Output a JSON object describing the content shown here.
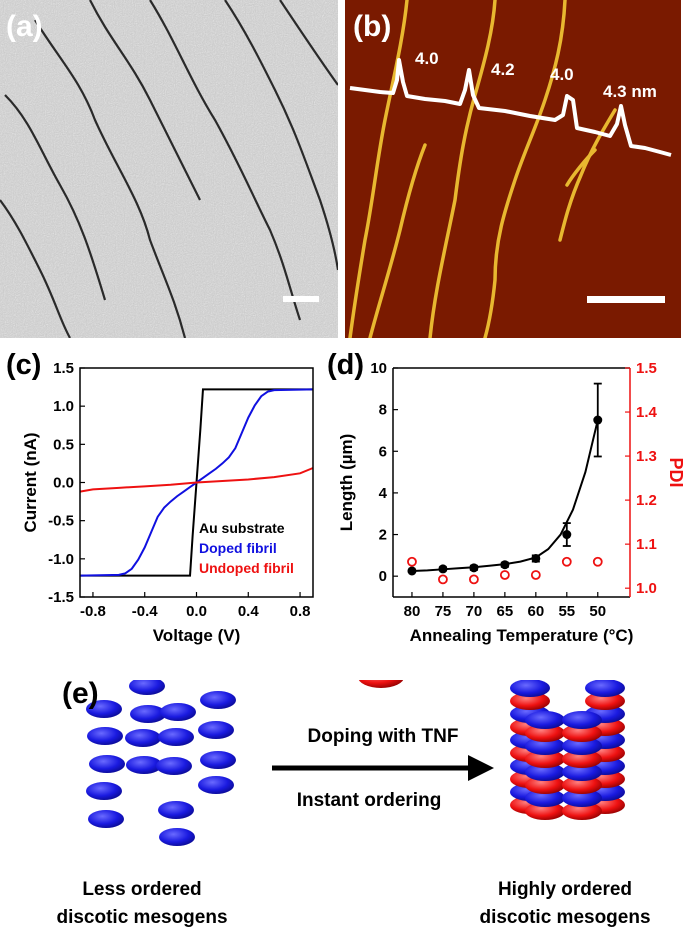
{
  "panels": {
    "a": {
      "label": "(a)"
    },
    "b": {
      "label": "(b)",
      "heights": [
        "4.0",
        "4.2",
        "4.0",
        "4.3 nm"
      ]
    },
    "e": {
      "label": "(e)",
      "arrow_top": "Doping with TNF",
      "arrow_bottom": "Instant ordering",
      "left_caption": [
        "Less ordered",
        "discotic mesogens"
      ],
      "right_caption": [
        "Highly ordered",
        "discotic mesogens"
      ]
    }
  },
  "colors": {
    "black": "#000000",
    "blue": "#1010e0",
    "red": "#ee1111",
    "afm_bg": "#7a1a00",
    "fiber": "#e8b830"
  },
  "chart_data": [
    {
      "panel": "(c)",
      "type": "line",
      "xlabel": "Voltage (V)",
      "ylabel": "Current (nA)",
      "xlim": [
        -0.9,
        0.9
      ],
      "ylim": [
        -1.5,
        1.5
      ],
      "xticks": [
        -0.8,
        -0.4,
        0.0,
        0.4,
        0.8
      ],
      "xtick_labels": [
        "-0.8",
        "-0.4",
        "0.0",
        "0.4",
        "0.8"
      ],
      "yticks": [
        -1.5,
        -1.0,
        -0.5,
        0.0,
        0.5,
        1.0,
        1.5
      ],
      "ytick_labels": [
        "-1.5",
        "-1.0",
        "-0.5",
        "0.0",
        "0.5",
        "1.0",
        "1.5"
      ],
      "legend_position": "bottom-right",
      "series": [
        {
          "name": "Au substrate",
          "color": "#000000",
          "x": [
            -0.9,
            -0.05,
            -0.03,
            0.0,
            0.03,
            0.05,
            0.9
          ],
          "y": [
            -1.22,
            -1.22,
            -0.7,
            0.0,
            0.7,
            1.22,
            1.22
          ]
        },
        {
          "name": "Doped fibril",
          "color": "#1010e0",
          "x": [
            -0.9,
            -0.6,
            -0.55,
            -0.5,
            -0.45,
            -0.4,
            -0.35,
            -0.3,
            -0.25,
            -0.2,
            -0.15,
            -0.1,
            -0.05,
            0.0,
            0.05,
            0.1,
            0.15,
            0.2,
            0.25,
            0.3,
            0.35,
            0.4,
            0.45,
            0.5,
            0.55,
            0.6,
            0.9
          ],
          "y": [
            -1.22,
            -1.21,
            -1.19,
            -1.13,
            -1.01,
            -0.85,
            -0.65,
            -0.45,
            -0.33,
            -0.25,
            -0.18,
            -0.12,
            -0.06,
            0.0,
            0.06,
            0.12,
            0.18,
            0.25,
            0.33,
            0.45,
            0.65,
            0.85,
            1.01,
            1.13,
            1.19,
            1.21,
            1.22
          ]
        },
        {
          "name": "Undoped fibril",
          "color": "#ee1111",
          "x": [
            -0.9,
            -0.8,
            -0.6,
            -0.4,
            -0.2,
            0.0,
            0.2,
            0.4,
            0.6,
            0.8,
            0.9
          ],
          "y": [
            -0.12,
            -0.09,
            -0.07,
            -0.05,
            -0.03,
            0.0,
            0.02,
            0.04,
            0.07,
            0.12,
            0.19
          ]
        }
      ]
    },
    {
      "panel": "(d)",
      "type": "scatter",
      "xlabel": "Annealing Temperature (°C)",
      "ylabel": "Length (µm)",
      "y2label": "PDI",
      "categories": [
        "80",
        "75",
        "70",
        "65",
        "60",
        "55",
        "50"
      ],
      "ylim": [
        -1,
        10
      ],
      "yticks": [
        0,
        2,
        4,
        6,
        8,
        10
      ],
      "ytick_labels": [
        "0",
        "2",
        "4",
        "6",
        "8",
        "10"
      ],
      "y2lim": [
        0.98,
        1.5
      ],
      "y2ticks": [
        1.0,
        1.1,
        1.2,
        1.3,
        1.4,
        1.5
      ],
      "y2tick_labels": [
        "1.0",
        "1.1",
        "1.2",
        "1.3",
        "1.4",
        "1.5"
      ],
      "series": [
        {
          "axis": "left",
          "color": "#000000",
          "x": [
            80,
            75,
            70,
            65,
            60,
            55,
            50
          ],
          "y": [
            0.25,
            0.35,
            0.4,
            0.55,
            0.85,
            2.0,
            7.5
          ],
          "err": [
            0.05,
            0.08,
            0.1,
            0.1,
            0.15,
            0.55,
            1.75
          ]
        },
        {
          "axis": "right",
          "color": "#ee1111",
          "marker": "open-circle",
          "x": [
            80,
            75,
            70,
            65,
            60,
            55,
            50
          ],
          "y": [
            1.06,
            1.02,
            1.02,
            1.03,
            1.03,
            1.06,
            1.06
          ]
        }
      ],
      "fit_curve": {
        "color": "#000000",
        "x": [
          80,
          77.5,
          75,
          72.5,
          70,
          67.5,
          65,
          62.5,
          60,
          58,
          56,
          54,
          52,
          50
        ],
        "y": [
          0.25,
          0.28,
          0.33,
          0.38,
          0.43,
          0.5,
          0.58,
          0.7,
          0.9,
          1.3,
          2.0,
          3.2,
          5.0,
          7.5
        ]
      }
    }
  ]
}
